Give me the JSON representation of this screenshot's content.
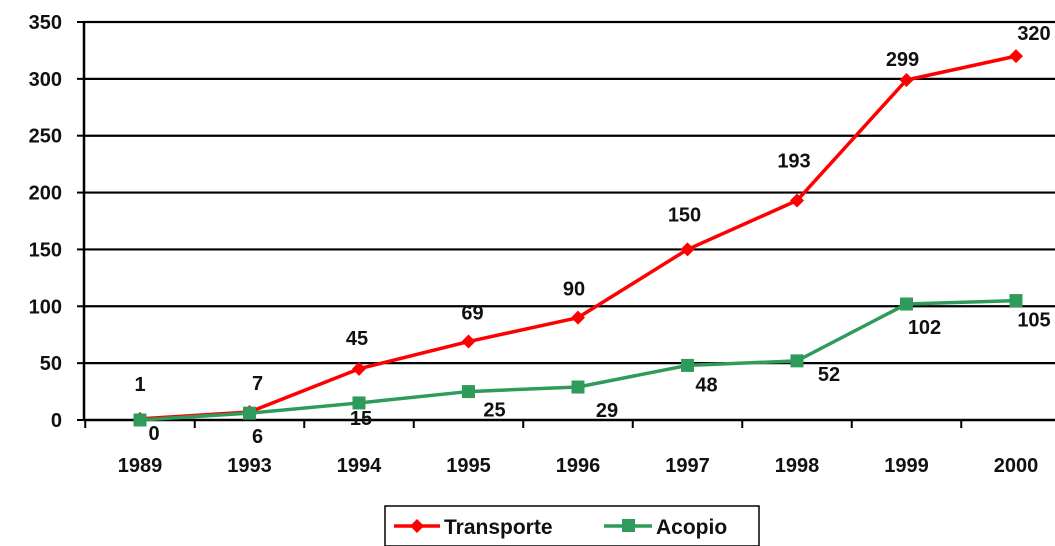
{
  "chart_data": {
    "type": "line",
    "categories": [
      "1989",
      "1993",
      "1994",
      "1995",
      "1996",
      "1997",
      "1998",
      "1999",
      "2000"
    ],
    "series": [
      {
        "name": "Transporte",
        "color": "#ff0000",
        "marker": "diamond",
        "values": [
          1,
          7,
          45,
          69,
          90,
          150,
          193,
          299,
          320
        ]
      },
      {
        "name": "Acopio",
        "color": "#2e9b5a",
        "marker": "square",
        "values": [
          0,
          6,
          15,
          25,
          29,
          48,
          52,
          102,
          105
        ]
      }
    ],
    "ylim": [
      0,
      350
    ],
    "yticks": [
      "0",
      "50",
      "100",
      "150",
      "200",
      "250",
      "300",
      "350"
    ],
    "grid": true,
    "legend_position": "bottom-center",
    "title": "",
    "xlabel": "",
    "ylabel": ""
  }
}
